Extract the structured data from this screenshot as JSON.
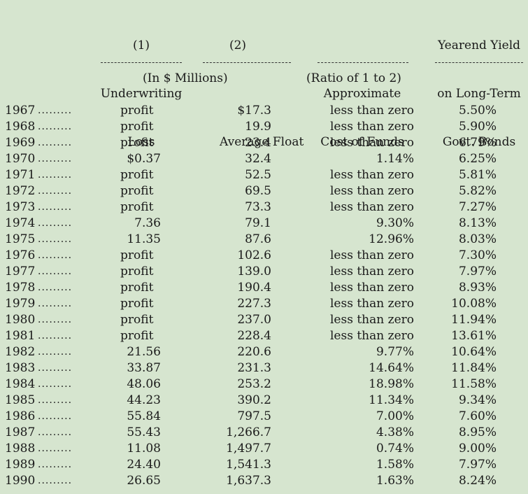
{
  "headers": {
    "col1": [
      "(1)",
      "Underwriting",
      "Loss"
    ],
    "col2": [
      "(2)",
      "",
      "Average Float"
    ],
    "col3": [
      "",
      "Approximate",
      "Cost of Funds"
    ],
    "col4": [
      "Yearend Yield",
      "on Long-Term",
      "Govt. Bonds"
    ],
    "units_left": "(In $ Millions)",
    "units_right": "(Ratio of 1 to 2)",
    "dots": "........."
  },
  "rows": [
    {
      "year": "1967",
      "loss": "profit",
      "float": "$17.3",
      "cost": "less than zero",
      "yield": "5.50%"
    },
    {
      "year": "1968",
      "loss": "profit",
      "float": "19.9",
      "cost": "less than zero",
      "yield": "5.90%"
    },
    {
      "year": "1969",
      "loss": "profit",
      "float": "23.4",
      "cost": "less than zero",
      "yield": "6.79%"
    },
    {
      "year": "1970",
      "loss": "$0.37",
      "float": "32.4",
      "cost": "1.14%",
      "yield": "6.25%"
    },
    {
      "year": "1971",
      "loss": "profit",
      "float": "52.5",
      "cost": "less than zero",
      "yield": "5.81%"
    },
    {
      "year": "1972",
      "loss": "profit",
      "float": "69.5",
      "cost": "less than zero",
      "yield": "5.82%"
    },
    {
      "year": "1973",
      "loss": "profit",
      "float": "73.3",
      "cost": "less than zero",
      "yield": "7.27%"
    },
    {
      "year": "1974",
      "loss": "7.36",
      "float": "79.1",
      "cost": "9.30%",
      "yield": "8.13%"
    },
    {
      "year": "1975",
      "loss": "11.35",
      "float": "87.6",
      "cost": "12.96%",
      "yield": "8.03%"
    },
    {
      "year": "1976",
      "loss": "profit",
      "float": "102.6",
      "cost": "less than zero",
      "yield": "7.30%"
    },
    {
      "year": "1977",
      "loss": "profit",
      "float": "139.0",
      "cost": "less than zero",
      "yield": "7.97%"
    },
    {
      "year": "1978",
      "loss": "profit",
      "float": "190.4",
      "cost": "less than zero",
      "yield": "8.93%"
    },
    {
      "year": "1979",
      "loss": "profit",
      "float": "227.3",
      "cost": "less than zero",
      "yield": "10.08%"
    },
    {
      "year": "1980",
      "loss": "profit",
      "float": "237.0",
      "cost": "less than zero",
      "yield": "11.94%"
    },
    {
      "year": "1981",
      "loss": "profit",
      "float": "228.4",
      "cost": "less than zero",
      "yield": "13.61%"
    },
    {
      "year": "1982",
      "loss": "21.56",
      "float": "220.6",
      "cost": "9.77%",
      "yield": "10.64%"
    },
    {
      "year": "1983",
      "loss": "33.87",
      "float": "231.3",
      "cost": "14.64%",
      "yield": "11.84%"
    },
    {
      "year": "1984",
      "loss": "48.06",
      "float": "253.2",
      "cost": "18.98%",
      "yield": "11.58%"
    },
    {
      "year": "1985",
      "loss": "44.23",
      "float": "390.2",
      "cost": "11.34%",
      "yield": "9.34%"
    },
    {
      "year": "1986",
      "loss": "55.84",
      "float": "797.5",
      "cost": "7.00%",
      "yield": "7.60%"
    },
    {
      "year": "1987",
      "loss": "55.43",
      "float": "1,266.7",
      "cost": "4.38%",
      "yield": "8.95%"
    },
    {
      "year": "1988",
      "loss": "11.08",
      "float": "1,497.7",
      "cost": "0.74%",
      "yield": "9.00%"
    },
    {
      "year": "1989",
      "loss": "24.40",
      "float": "1,541.3",
      "cost": "1.58%",
      "yield": "7.97%"
    },
    {
      "year": "1990",
      "loss": "26.65",
      "float": "1,637.3",
      "cost": "1.63%",
      "yield": "8.24%"
    }
  ]
}
